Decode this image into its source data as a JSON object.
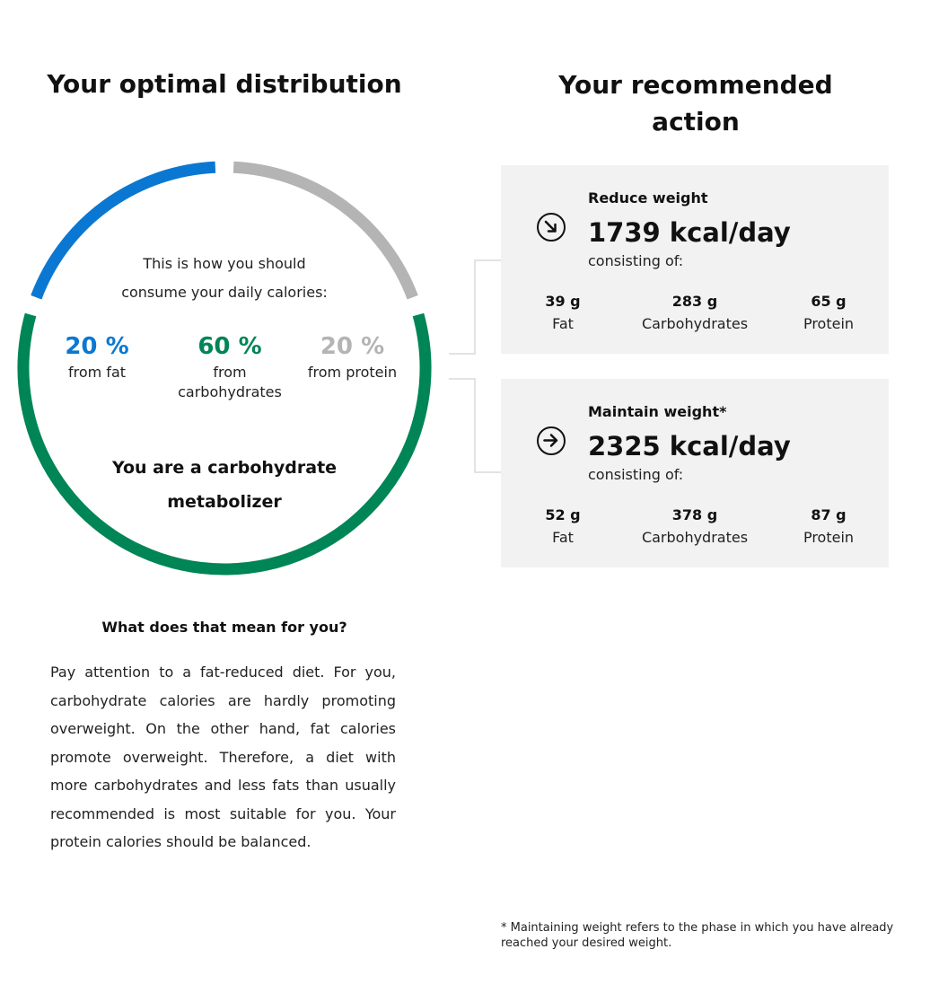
{
  "left": {
    "heading": "Your optimal distribution",
    "intro_line1": "This is how you should",
    "intro_line2": "consume your daily calories:",
    "percentages": [
      {
        "value": "20 %",
        "label_line1": "from fat",
        "label_line2": "",
        "color": "#0a78d2",
        "fraction": 0.2
      },
      {
        "value": "60 %",
        "label_line1": "from",
        "label_line2": "carbohydrates",
        "color": "#008556",
        "fraction": 0.6
      },
      {
        "value": "20 %",
        "label_line1": "from protein",
        "label_line2": "",
        "color": "#b4b4b4",
        "fraction": 0.2
      }
    ],
    "metabolizer_line1": "You are a carbohydrate",
    "metabolizer_line2": "metabolizer",
    "question": "What does that mean for you?",
    "paragraph": "Pay attention to a fat-reduced diet. For you, carbohydrate calories are hardly promoting overweight. On the other hand, fat calories promote overweight. Therefore, a diet with more carbohydrates and less fats than usually recommended is most suitable for you. Your protein calories should be balanced."
  },
  "right": {
    "heading_line1": "Your recommended",
    "heading_line2": "action",
    "cards": [
      {
        "icon": "arrow-down-right-circle-icon",
        "title": "Reduce weight",
        "kcal": "1739 kcal/day",
        "consisting": "consisting of:",
        "macros": [
          {
            "grams": "39 g",
            "name": "Fat"
          },
          {
            "grams": "283 g",
            "name": "Carbohydrates"
          },
          {
            "grams": "65 g",
            "name": "Protein"
          }
        ]
      },
      {
        "icon": "arrow-right-circle-icon",
        "title": "Maintain weight*",
        "kcal": "2325 kcal/day",
        "consisting": "consisting of:",
        "macros": [
          {
            "grams": "52 g",
            "name": "Fat"
          },
          {
            "grams": "378 g",
            "name": "Carbohydrates"
          },
          {
            "grams": "87 g",
            "name": "Protein"
          }
        ]
      }
    ],
    "footnote": "* Maintaining weight refers to the phase in which you have already reached your desired weight."
  }
}
